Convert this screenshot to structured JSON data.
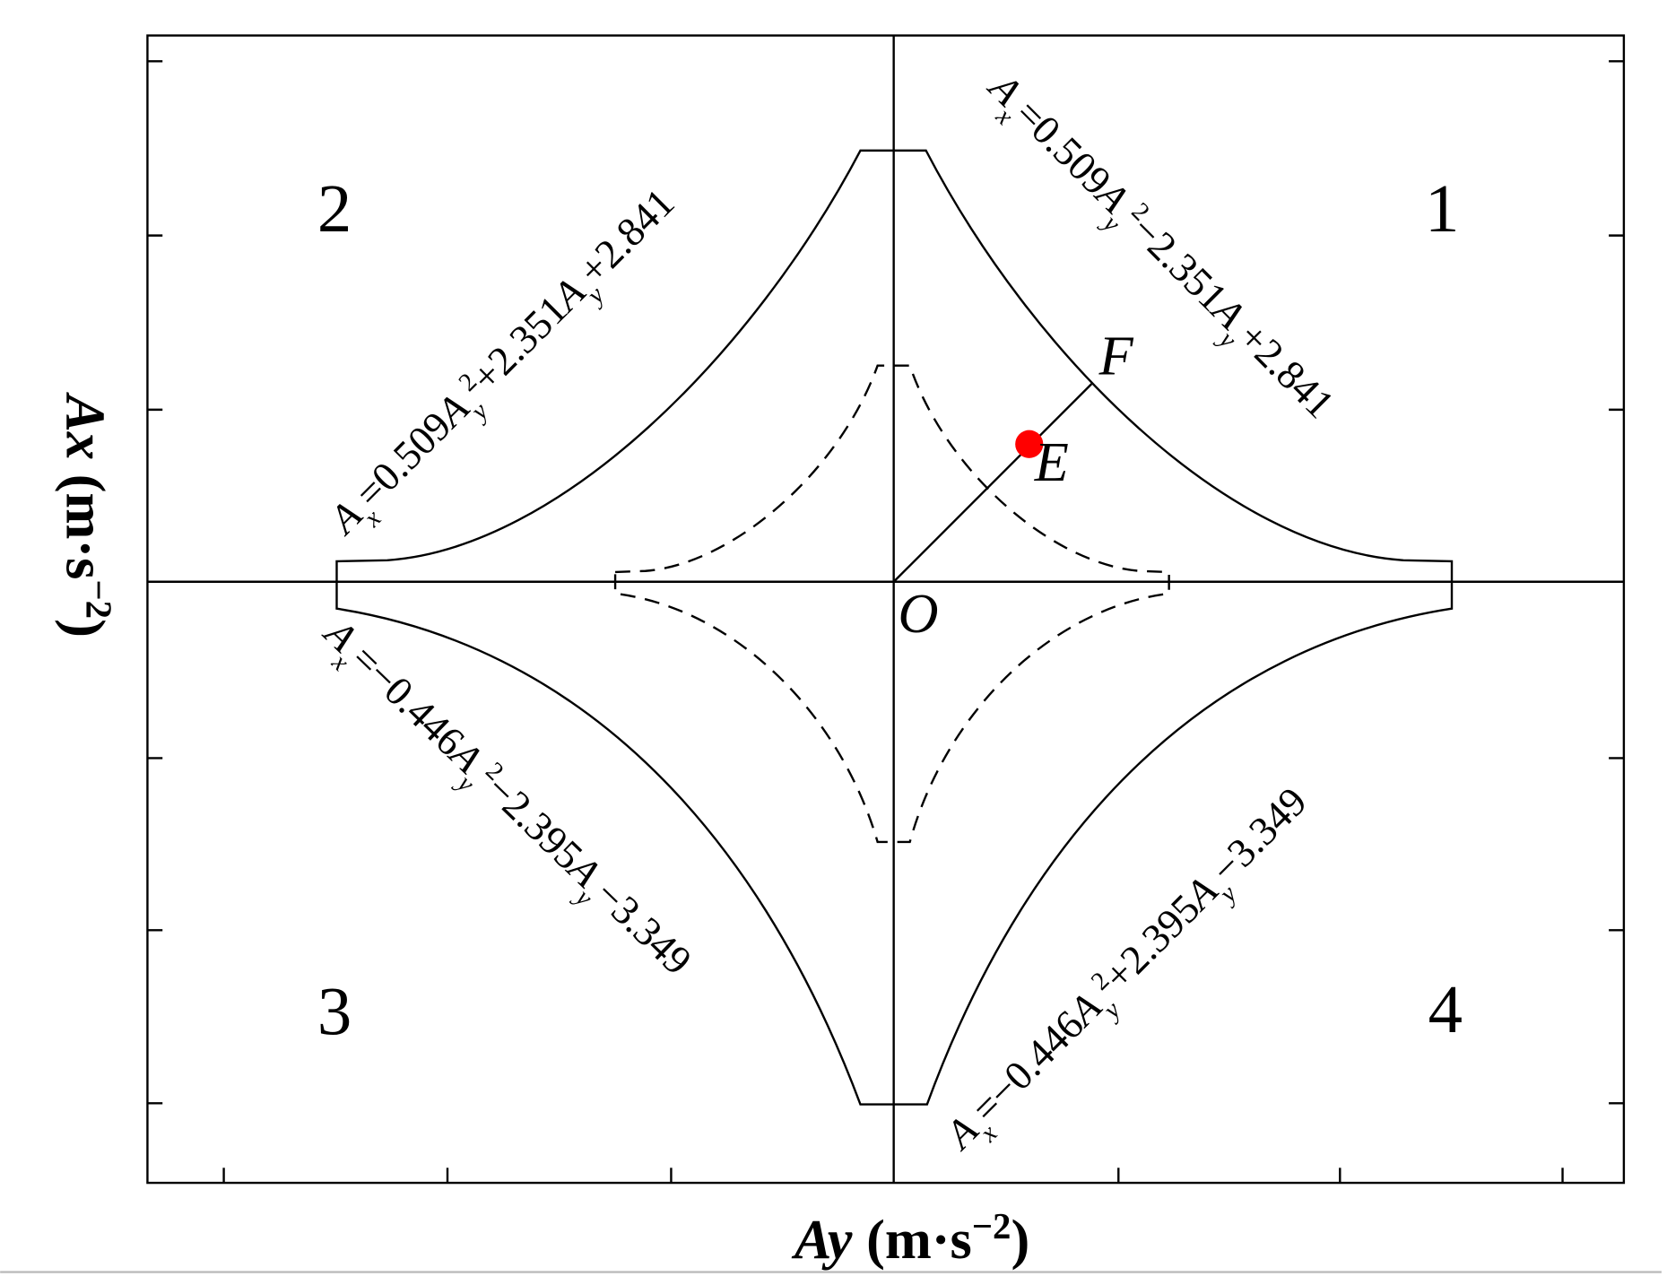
{
  "axes": {
    "x_label": [
      "Ay",
      " (m·s",
      "−2",
      ")"
    ],
    "y_label": [
      "Ax",
      " (m·s",
      "−2",
      ")"
    ]
  },
  "regions": [
    "1",
    "2",
    "3",
    "4"
  ],
  "points": {
    "origin": "O",
    "e": "E",
    "f": "F"
  },
  "equations": [
    {
      "parts": [
        "A",
        "x",
        "=0.509",
        "A",
        "y",
        "2",
        "+2.351",
        "A",
        "y",
        "+2.841"
      ]
    },
    {
      "parts": [
        "A",
        "x",
        "=0.509",
        "A",
        "y",
        "2",
        "−2.351",
        "A",
        "y",
        "+2.841"
      ]
    },
    {
      "parts": [
        "A",
        "x",
        "=−0.446",
        "A",
        "y",
        "2",
        "−2.395",
        "A",
        "y",
        "−3.349"
      ]
    },
    {
      "parts": [
        "A",
        "x",
        "=−0.446",
        "A",
        "y",
        "2",
        "+2.395",
        "A",
        "y",
        "−3.349"
      ]
    }
  ]
}
